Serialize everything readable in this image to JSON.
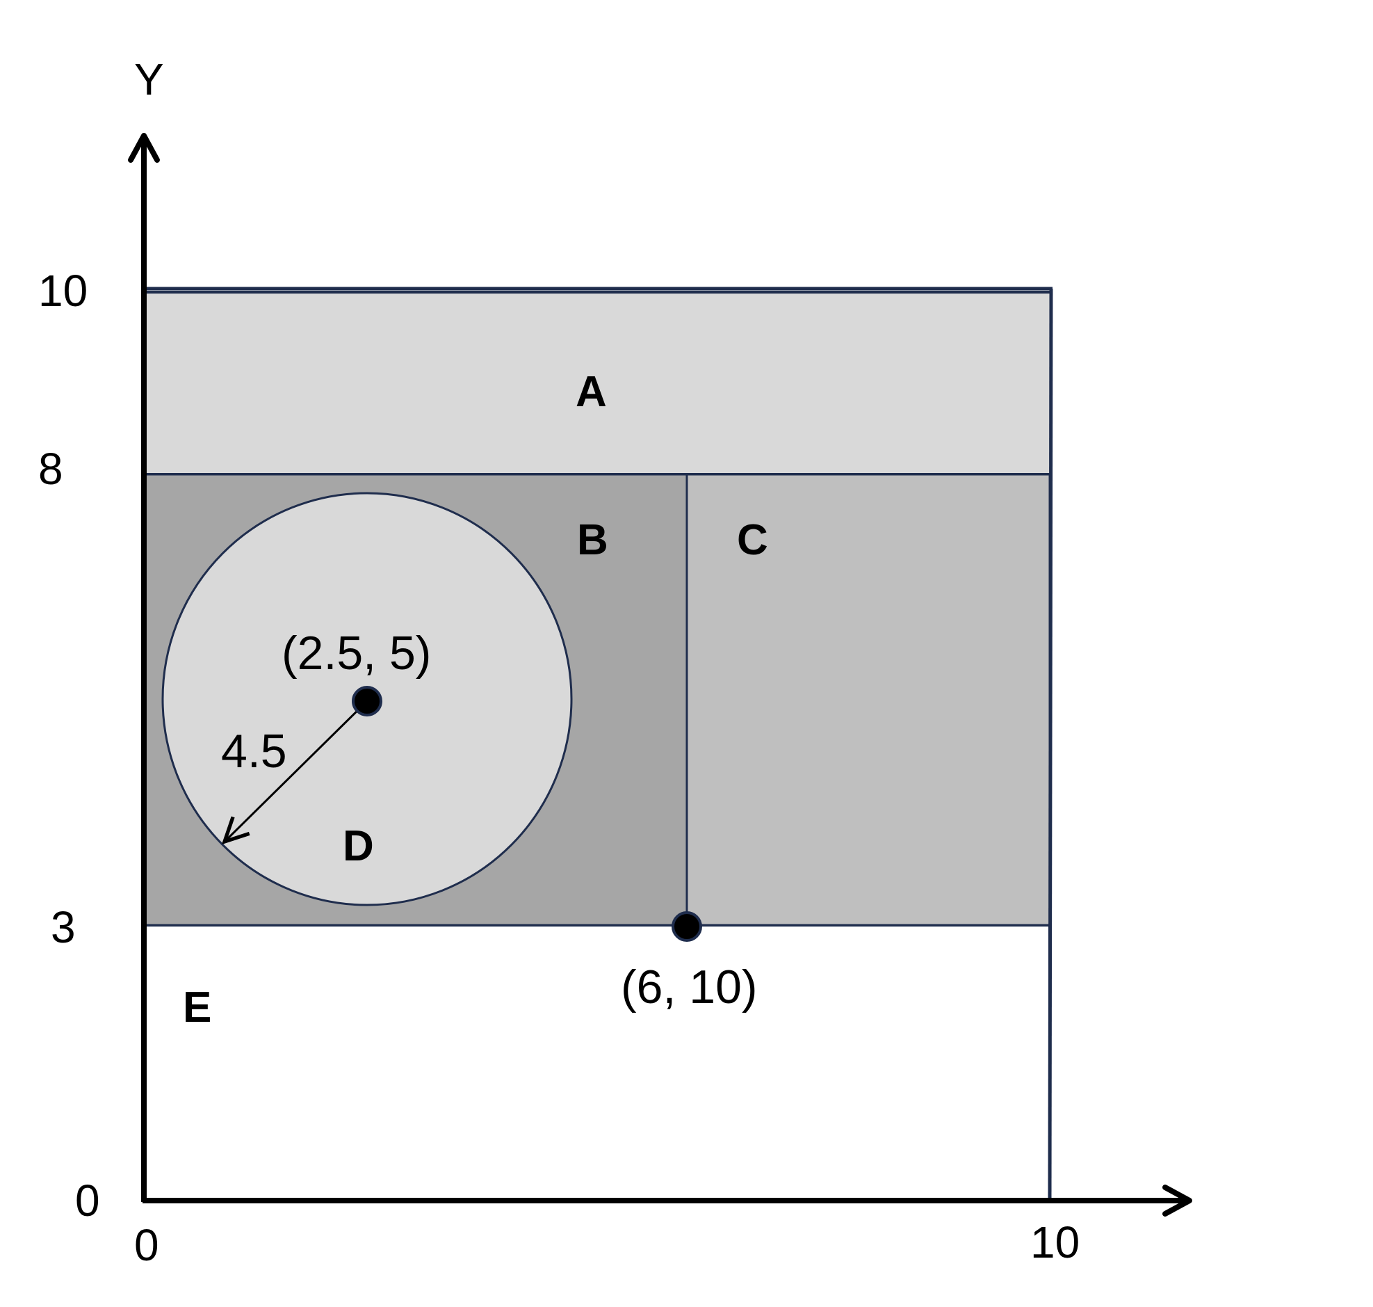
{
  "axes": {
    "y_label": "Y",
    "y_ticks": [
      "10",
      "8",
      "3",
      "0"
    ],
    "x_ticks": [
      "0",
      "10"
    ]
  },
  "regions": {
    "a": "A",
    "b": "B",
    "c": "C",
    "d": "D",
    "e": "E"
  },
  "annotations": {
    "center_point": "(2.5, 5)",
    "radius": "4.5",
    "corner_point": "(6, 10)"
  },
  "colors": {
    "region_a": "#d9d9d9",
    "region_b": "#a6a6a6",
    "region_c": "#bfbfbf",
    "region_d": "#d9d9d9",
    "region_e": "#ffffff",
    "outline": "#1f2d4d"
  }
}
